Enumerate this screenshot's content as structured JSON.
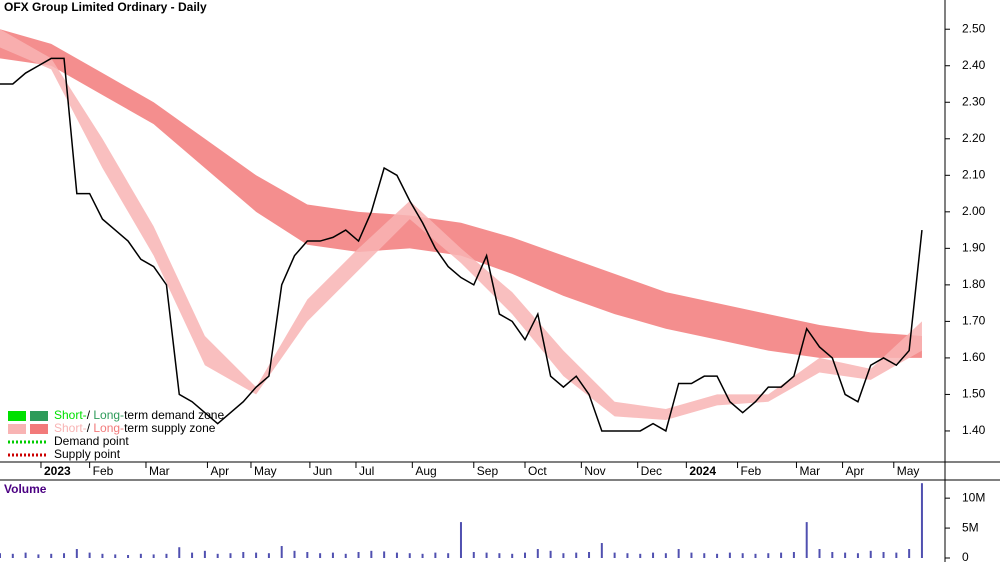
{
  "chart_data": [
    {
      "type": "line",
      "title": "OFX Group Limited Ordinary - Daily",
      "xlim": [
        0,
        369
      ],
      "xticks": [
        {
          "value": 16,
          "label": "2023"
        },
        {
          "value": 35,
          "label": "Feb"
        },
        {
          "value": 57,
          "label": "Mar"
        },
        {
          "value": 81,
          "label": "Apr"
        },
        {
          "value": 98,
          "label": "May"
        },
        {
          "value": 121,
          "label": "Jun"
        },
        {
          "value": 139,
          "label": "Jul"
        },
        {
          "value": 161,
          "label": "Aug"
        },
        {
          "value": 185,
          "label": "Sep"
        },
        {
          "value": 205,
          "label": "Oct"
        },
        {
          "value": 227,
          "label": "Nov"
        },
        {
          "value": 249,
          "label": "Dec"
        },
        {
          "value": 268,
          "label": "2024"
        },
        {
          "value": 288,
          "label": "Feb"
        },
        {
          "value": 311,
          "label": "Mar"
        },
        {
          "value": 329,
          "label": "Apr"
        },
        {
          "value": 349,
          "label": "May"
        }
      ],
      "ylim": [
        1.315,
        2.58
      ],
      "yticks": [
        {
          "value": 1.4,
          "label": "1.40"
        },
        {
          "value": 1.5,
          "label": "1.50"
        },
        {
          "value": 1.6,
          "label": "1.60"
        },
        {
          "value": 1.7,
          "label": "1.70"
        },
        {
          "value": 1.8,
          "label": "1.80"
        },
        {
          "value": 1.9,
          "label": "1.90"
        },
        {
          "value": 2.0,
          "label": "2.00"
        },
        {
          "value": 2.1,
          "label": "2.10"
        },
        {
          "value": 2.2,
          "label": "2.20"
        },
        {
          "value": 2.3,
          "label": "2.30"
        },
        {
          "value": 2.4,
          "label": "2.40"
        },
        {
          "value": 2.5,
          "label": "2.50"
        }
      ],
      "bands": [
        {
          "name": "Long-term",
          "color": "#f27a7a",
          "x": [
            0,
            20,
            40,
            60,
            80,
            100,
            120,
            140,
            160,
            180,
            200,
            220,
            240,
            260,
            280,
            300,
            320,
            340,
            360
          ],
          "upper": [
            2.5,
            2.46,
            2.38,
            2.3,
            2.2,
            2.1,
            2.02,
            2.0,
            1.99,
            1.97,
            1.93,
            1.88,
            1.83,
            1.78,
            1.75,
            1.72,
            1.69,
            1.67,
            1.66
          ],
          "lower": [
            2.42,
            2.4,
            2.32,
            2.24,
            2.12,
            2.0,
            1.91,
            1.89,
            1.9,
            1.88,
            1.83,
            1.77,
            1.72,
            1.68,
            1.65,
            1.62,
            1.6,
            1.6,
            1.6
          ]
        },
        {
          "name": "Short-term",
          "color": "#f8b4b4",
          "x": [
            0,
            20,
            40,
            60,
            80,
            100,
            120,
            140,
            160,
            180,
            200,
            220,
            240,
            260,
            280,
            300,
            320,
            340,
            360
          ],
          "upper": [
            2.5,
            2.42,
            2.2,
            1.96,
            1.66,
            1.52,
            1.76,
            1.9,
            2.03,
            1.9,
            1.78,
            1.62,
            1.48,
            1.46,
            1.5,
            1.5,
            1.6,
            1.57,
            1.7
          ],
          "lower": [
            2.45,
            2.39,
            2.12,
            1.88,
            1.58,
            1.5,
            1.7,
            1.84,
            1.98,
            1.86,
            1.72,
            1.55,
            1.44,
            1.43,
            1.47,
            1.48,
            1.56,
            1.54,
            1.62
          ]
        }
      ],
      "series": [
        {
          "name": "Close",
          "color": "#000000",
          "x": [
            0,
            5,
            10,
            15,
            20,
            25,
            30,
            35,
            40,
            45,
            50,
            55,
            60,
            65,
            70,
            75,
            80,
            85,
            90,
            95,
            100,
            105,
            110,
            115,
            120,
            125,
            130,
            135,
            140,
            145,
            150,
            155,
            160,
            165,
            170,
            175,
            180,
            185,
            190,
            195,
            200,
            205,
            210,
            215,
            220,
            225,
            230,
            235,
            240,
            245,
            250,
            255,
            260,
            265,
            270,
            275,
            280,
            285,
            290,
            295,
            300,
            305,
            310,
            315,
            320,
            325,
            330,
            335,
            340,
            345,
            350,
            355,
            360
          ],
          "values": [
            2.35,
            2.35,
            2.38,
            2.4,
            2.42,
            2.42,
            2.05,
            2.05,
            1.98,
            1.95,
            1.92,
            1.87,
            1.85,
            1.8,
            1.5,
            1.48,
            1.45,
            1.42,
            1.45,
            1.48,
            1.52,
            1.55,
            1.8,
            1.88,
            1.92,
            1.92,
            1.93,
            1.95,
            1.92,
            2.0,
            2.12,
            2.1,
            2.03,
            1.97,
            1.9,
            1.85,
            1.82,
            1.8,
            1.88,
            1.72,
            1.7,
            1.65,
            1.72,
            1.55,
            1.52,
            1.55,
            1.5,
            1.4,
            1.4,
            1.4,
            1.4,
            1.42,
            1.4,
            1.53,
            1.53,
            1.55,
            1.55,
            1.48,
            1.45,
            1.48,
            1.52,
            1.52,
            1.55,
            1.68,
            1.63,
            1.6,
            1.5,
            1.48,
            1.58,
            1.6,
            1.58,
            1.62,
            1.95
          ]
        }
      ],
      "legend": [
        {
          "parts": [
            "Short-",
            "/ ",
            "Long-",
            "term demand zone"
          ],
          "colors": [
            "#00e000",
            "#2e9b5a"
          ]
        },
        {
          "parts": [
            "Short-",
            "/ ",
            "Long-",
            "term supply zone"
          ],
          "colors": [
            "#f8b4b4",
            "#f27a7a"
          ]
        },
        {
          "parts": [
            "Demand point"
          ],
          "colors": [
            "#00cc00"
          ]
        },
        {
          "parts": [
            "Supply point"
          ],
          "colors": [
            "#cc0000"
          ]
        }
      ]
    },
    {
      "type": "bar",
      "title": "Volume",
      "color": "#5050b0",
      "ylim": [
        0,
        12700000
      ],
      "yticks": [
        0,
        {
          "value": 5000000,
          "label": "5M"
        },
        {
          "value": 10000000,
          "label": "10M"
        }
      ],
      "x": [
        0,
        5,
        10,
        15,
        20,
        25,
        30,
        35,
        40,
        45,
        50,
        55,
        60,
        65,
        70,
        75,
        80,
        85,
        90,
        95,
        100,
        105,
        110,
        115,
        120,
        125,
        130,
        135,
        140,
        145,
        150,
        155,
        160,
        165,
        170,
        175,
        180,
        185,
        190,
        195,
        200,
        205,
        210,
        215,
        220,
        225,
        230,
        235,
        240,
        245,
        250,
        255,
        260,
        265,
        270,
        275,
        280,
        285,
        290,
        295,
        300,
        305,
        310,
        315,
        320,
        325,
        330,
        335,
        340,
        345,
        350,
        355,
        360
      ],
      "values": [
        800000,
        700000,
        900000,
        600000,
        700000,
        800000,
        1500000,
        900000,
        700000,
        600000,
        500000,
        700000,
        600000,
        700000,
        1800000,
        900000,
        1200000,
        700000,
        800000,
        1000000,
        900000,
        800000,
        2000000,
        1200000,
        1000000,
        800000,
        900000,
        700000,
        1000000,
        1200000,
        1100000,
        900000,
        800000,
        700000,
        900000,
        800000,
        6000000,
        1000000,
        900000,
        800000,
        700000,
        900000,
        1500000,
        1200000,
        800000,
        900000,
        1000000,
        2500000,
        900000,
        800000,
        700000,
        900000,
        800000,
        1500000,
        900000,
        800000,
        700000,
        900000,
        800000,
        700000,
        800000,
        900000,
        1000000,
        6000000,
        1500000,
        1000000,
        900000,
        800000,
        1200000,
        1000000,
        900000,
        1500000,
        12500000
      ]
    }
  ]
}
